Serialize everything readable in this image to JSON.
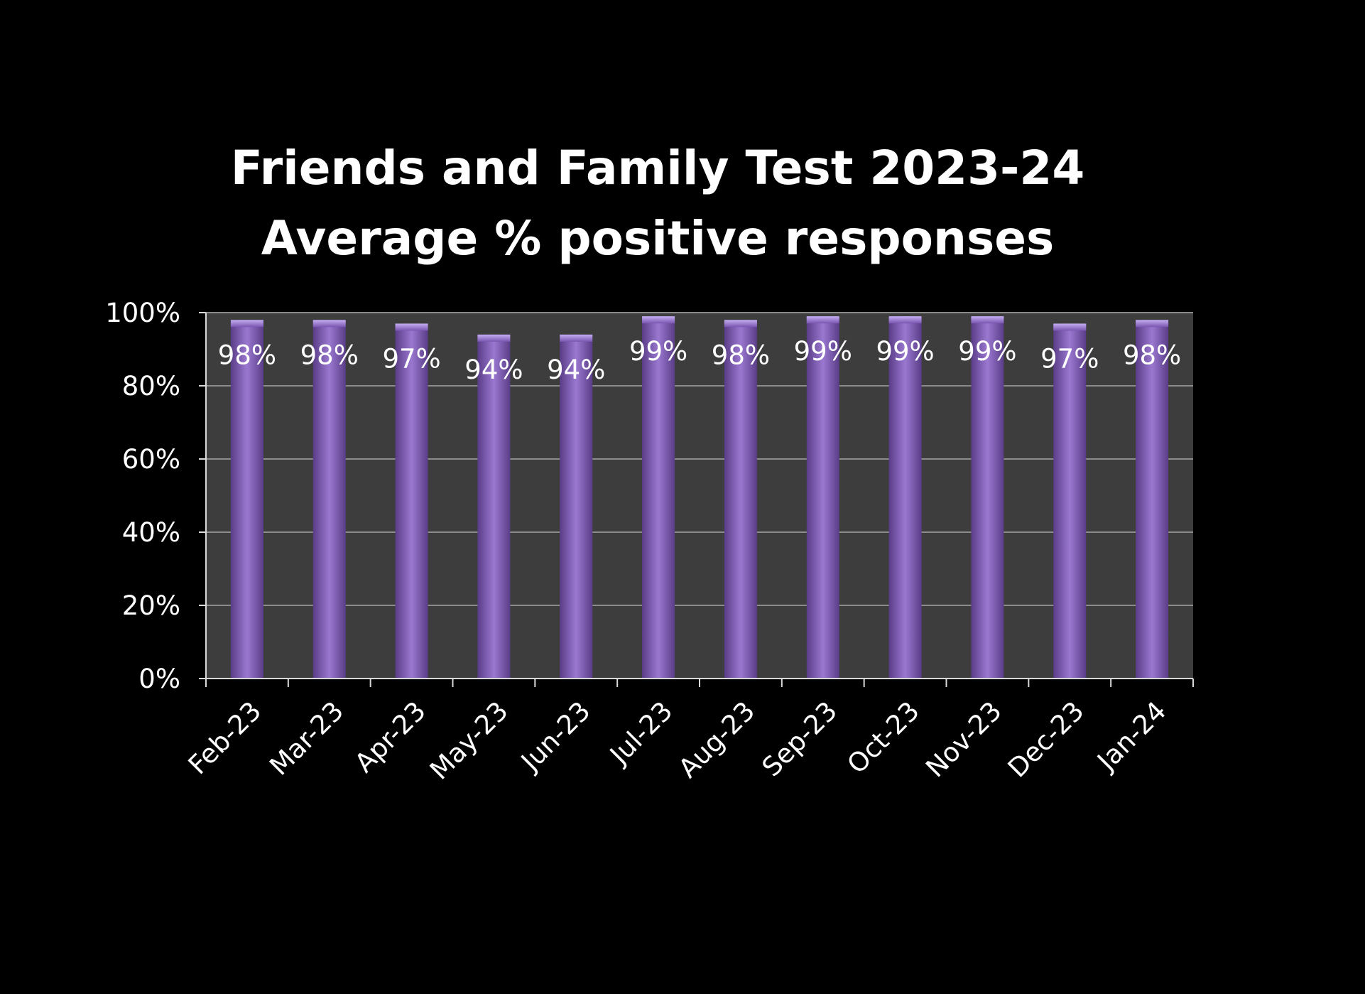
{
  "chart_data": {
    "type": "bar",
    "title": "Friends and Family Test 2023-24",
    "subtitle": "Average % positive responses",
    "categories": [
      "Feb-23",
      "Mar-23",
      "Apr-23",
      "May-23",
      "Jun-23",
      "Jul-23",
      "Aug-23",
      "Sep-23",
      "Oct-23",
      "Nov-23",
      "Dec-23",
      "Jan-24"
    ],
    "values": [
      0.98,
      0.98,
      0.97,
      0.94,
      0.94,
      0.99,
      0.98,
      0.99,
      0.99,
      0.99,
      0.97,
      0.98
    ],
    "data_labels": [
      "98%",
      "98%",
      "97%",
      "94%",
      "94%",
      "99%",
      "98%",
      "99%",
      "99%",
      "99%",
      "97%",
      "98%"
    ],
    "y_ticks": [
      0,
      0.2,
      0.4,
      0.6,
      0.8,
      1.0
    ],
    "y_tick_labels": [
      "0%",
      "20%",
      "40%",
      "60%",
      "80%",
      "100%"
    ],
    "ylim": [
      0,
      1.0
    ],
    "xlabel": "",
    "ylabel": "",
    "grid": true,
    "legend": "none",
    "colors": {
      "background": "#000000",
      "plot_area": "#3d3d3d",
      "bar": "#7a55b0",
      "bar_light": "#9a78d0",
      "bar_dark": "#5a3d88",
      "gridline": "#8c8c8c",
      "axis": "#d9d9d9",
      "text": "#ffffff"
    }
  }
}
